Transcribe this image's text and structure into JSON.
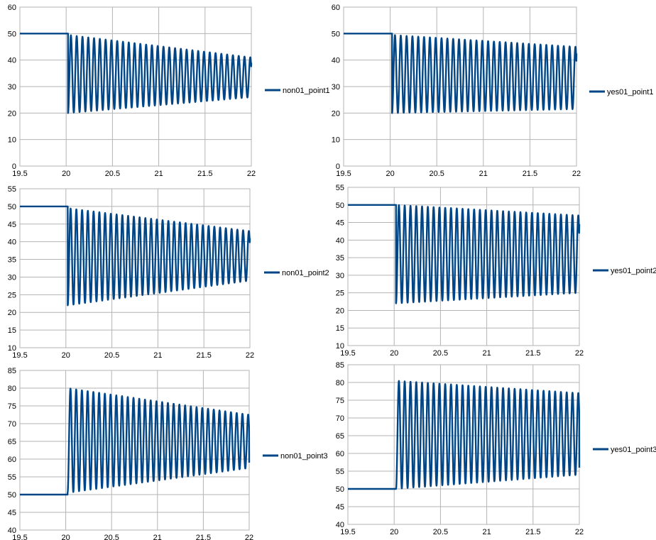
{
  "colors": {
    "series": "#004586",
    "grid": "#b3b3b3",
    "axis_text": "#000000"
  },
  "chart_data": [
    {
      "type": "line",
      "title": "",
      "xlabel": "",
      "ylabel": "",
      "xlim": [
        19.5,
        22
      ],
      "ylim": [
        0,
        60
      ],
      "xticks": [
        "19.5",
        "20",
        "20.5",
        "21",
        "21.5",
        "22"
      ],
      "yticks": [
        "0",
        "10",
        "20",
        "30",
        "40",
        "50",
        "60"
      ],
      "legend_position": "right",
      "series": [
        {
          "name": "non01_point1",
          "baseline": 50,
          "step_x": 20.02,
          "period": 0.0625,
          "max_start": 49.5,
          "max_end": 41,
          "min_start": 20,
          "min_end": 26,
          "end_value": 39
        }
      ]
    },
    {
      "type": "line",
      "title": "",
      "xlabel": "",
      "ylabel": "",
      "xlim": [
        19.5,
        22
      ],
      "ylim": [
        0,
        60
      ],
      "xticks": [
        "19.5",
        "20",
        "20.5",
        "21",
        "21.5",
        "22"
      ],
      "yticks": [
        "0",
        "10",
        "20",
        "30",
        "40",
        "50",
        "60"
      ],
      "legend_position": "right",
      "series": [
        {
          "name": "yes01_point1",
          "baseline": 50,
          "step_x": 20.02,
          "period": 0.0625,
          "max_start": 49.5,
          "max_end": 45,
          "min_start": 20,
          "min_end": 21.5,
          "end_value": 42.5
        }
      ]
    },
    {
      "type": "line",
      "title": "",
      "xlabel": "",
      "ylabel": "",
      "xlim": [
        19.5,
        22
      ],
      "ylim": [
        10,
        55
      ],
      "xticks": [
        "19.5",
        "20",
        "20.5",
        "21",
        "21.5",
        "22"
      ],
      "yticks": [
        "10",
        "15",
        "20",
        "25",
        "30",
        "35",
        "40",
        "45",
        "50",
        "55"
      ],
      "legend_position": "right",
      "series": [
        {
          "name": "non01_point2",
          "baseline": 50,
          "step_x": 20.02,
          "period": 0.0625,
          "max_start": 49.5,
          "max_end": 43,
          "min_start": 22,
          "min_end": 29,
          "end_value": 41
        }
      ]
    },
    {
      "type": "line",
      "title": "",
      "xlabel": "",
      "ylabel": "",
      "xlim": [
        19.5,
        22
      ],
      "ylim": [
        10,
        55
      ],
      "xticks": [
        "19.5",
        "20",
        "20.5",
        "21",
        "21.5",
        "22"
      ],
      "yticks": [
        "10",
        "15",
        "20",
        "25",
        "30",
        "35",
        "40",
        "45",
        "50",
        "55"
      ],
      "legend_position": "right",
      "series": [
        {
          "name": "yes01_point2",
          "baseline": 50,
          "step_x": 20.02,
          "period": 0.0625,
          "max_start": 50,
          "max_end": 47,
          "min_start": 22,
          "min_end": 25,
          "end_value": 44.5
        }
      ]
    },
    {
      "type": "line",
      "title": "",
      "xlabel": "",
      "ylabel": "",
      "xlim": [
        19.5,
        22
      ],
      "ylim": [
        40,
        85
      ],
      "xticks": [
        "19.5",
        "20",
        "20.5",
        "21",
        "21.5",
        "22"
      ],
      "yticks": [
        "40",
        "45",
        "50",
        "55",
        "60",
        "65",
        "70",
        "75",
        "80",
        "85"
      ],
      "legend_position": "right",
      "series": [
        {
          "name": "non01_point3",
          "baseline": 50,
          "step_x": 20.02,
          "period": 0.0625,
          "max_start": 80,
          "max_end": 72.5,
          "min_start": 50.5,
          "min_end": 57.5,
          "end_value": 59
        }
      ]
    },
    {
      "type": "line",
      "title": "",
      "xlabel": "",
      "ylabel": "",
      "xlim": [
        19.5,
        22
      ],
      "ylim": [
        40,
        85
      ],
      "xticks": [
        "19.5",
        "20",
        "20.5",
        "21",
        "21.5",
        "22"
      ],
      "yticks": [
        "40",
        "45",
        "50",
        "55",
        "60",
        "65",
        "70",
        "75",
        "80",
        "85"
      ],
      "legend_position": "right",
      "series": [
        {
          "name": "yes01_point3",
          "baseline": 50,
          "step_x": 20.02,
          "period": 0.0625,
          "max_start": 80.5,
          "max_end": 77,
          "min_start": 50,
          "min_end": 54,
          "end_value": 56
        }
      ]
    }
  ]
}
